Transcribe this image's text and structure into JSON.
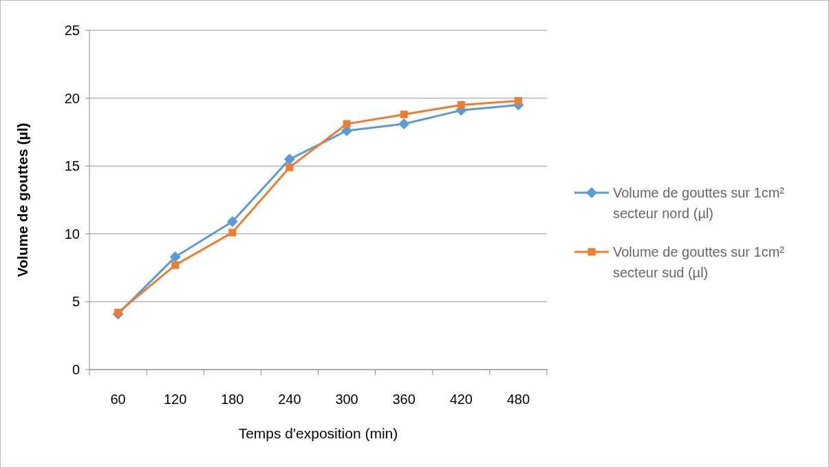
{
  "chart_data": {
    "type": "line",
    "xlabel": "Temps d'exposition (min)",
    "ylabel": "Volume de gouttes (µl)",
    "categories": [
      "60",
      "120",
      "180",
      "240",
      "300",
      "360",
      "420",
      "480"
    ],
    "series": [
      {
        "name": "Volume de gouttes sur 1cm² secteur nord (µl)",
        "color": "#5b9bd5",
        "marker": "diamond",
        "values": [
          4.1,
          8.3,
          10.9,
          15.5,
          17.6,
          18.1,
          19.1,
          19.5
        ]
      },
      {
        "name": "Volume de gouttes sur 1cm² secteur sud (µl)",
        "color": "#ed7d31",
        "marker": "square",
        "values": [
          4.2,
          7.7,
          10.1,
          14.9,
          18.1,
          18.8,
          19.5,
          19.8
        ]
      }
    ],
    "ylim": [
      0,
      25
    ],
    "yticks": [
      0,
      5,
      10,
      15,
      20,
      25
    ],
    "grid": "y",
    "legend": "right"
  }
}
